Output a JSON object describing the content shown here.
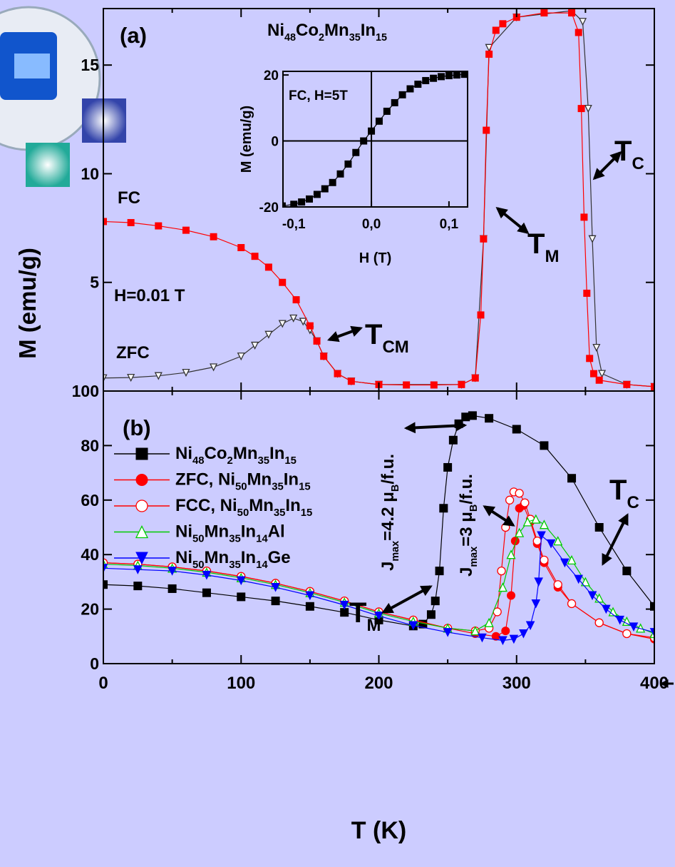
{
  "chart_data": [
    {
      "type": "line",
      "panel_label": "(a)",
      "title_parts": [
        "Ni",
        "48",
        "Co",
        "2",
        "Mn",
        "35",
        "In",
        "15"
      ],
      "ylabel": "M (emu/g)",
      "xlim": [
        0,
        400
      ],
      "ylim": [
        0,
        17.6
      ],
      "yticks": [
        5,
        10,
        15
      ],
      "annotations": {
        "fc": "FC",
        "field": "H=0.01 T",
        "zfc": "ZFC",
        "tcm": [
          "T",
          "CM"
        ],
        "tm": [
          "T",
          "M"
        ],
        "tc": [
          "T",
          "C"
        ]
      },
      "series": [
        {
          "marker": "open-triangle-down",
          "color": "#333333",
          "x": [
            0,
            20,
            40,
            60,
            80,
            100,
            110,
            120,
            130,
            138,
            145,
            150,
            155,
            160,
            170,
            180,
            200,
            260,
            270,
            276,
            280,
            300,
            340,
            348,
            352,
            355,
            358,
            362,
            380,
            400
          ],
          "values": [
            0.6,
            0.62,
            0.7,
            0.85,
            1.1,
            1.6,
            2.1,
            2.6,
            3.1,
            3.35,
            3.2,
            2.8,
            2.3,
            1.6,
            0.8,
            0.45,
            0.3,
            0.3,
            0.6,
            7,
            15.8,
            17.2,
            17.5,
            17,
            13,
            7,
            2,
            0.8,
            0.3,
            0.2
          ]
        },
        {
          "marker": "square",
          "color": "#ff0000",
          "x": [
            0,
            20,
            40,
            60,
            80,
            100,
            110,
            120,
            130,
            140,
            150,
            155,
            160,
            170,
            180,
            200,
            220,
            240,
            260,
            270,
            274,
            276,
            278,
            280,
            285,
            290,
            300,
            320,
            340,
            345,
            347,
            349,
            351,
            353,
            356,
            360,
            380,
            400
          ],
          "values": [
            7.8,
            7.75,
            7.6,
            7.4,
            7.1,
            6.6,
            6.2,
            5.7,
            5.0,
            4.2,
            3.0,
            2.3,
            1.6,
            0.8,
            0.45,
            0.3,
            0.28,
            0.28,
            0.3,
            0.6,
            3.5,
            7,
            12,
            15.5,
            16.6,
            16.9,
            17.2,
            17.4,
            17.4,
            16.5,
            13,
            8,
            4.5,
            1.5,
            0.8,
            0.5,
            0.3,
            0.2
          ]
        }
      ]
    },
    {
      "type": "line",
      "text": "FC, H=5T",
      "xlabel": "H (T)",
      "ylabel": "M (emu/g)",
      "xlim": [
        -0.114,
        0.124
      ],
      "ylim": [
        -20,
        21.1
      ],
      "xticks": [
        {
          "value": -0.1,
          "label": "-0,1"
        },
        {
          "value": 0,
          "label": "0,0"
        },
        {
          "value": 0.1,
          "label": "0,1"
        }
      ],
      "yticks": [
        -20,
        0,
        20
      ],
      "series": [
        {
          "marker": "square",
          "color": "#000000",
          "x": [
            -0.115,
            -0.1,
            -0.09,
            -0.08,
            -0.07,
            -0.06,
            -0.05,
            -0.04,
            -0.03,
            -0.02,
            -0.01,
            0,
            0.01,
            0.02,
            0.03,
            0.04,
            0.05,
            0.06,
            0.07,
            0.08,
            0.09,
            0.1,
            0.11,
            0.12
          ],
          "values": [
            -19.7,
            -19.2,
            -18.5,
            -17.6,
            -16.2,
            -14.5,
            -12.6,
            -10,
            -7,
            -3.5,
            0,
            3,
            6,
            9,
            11.6,
            14,
            15.8,
            17.2,
            18.3,
            19,
            19.5,
            19.8,
            20,
            20.2
          ]
        }
      ]
    },
    {
      "type": "line",
      "panel_label": "(b)",
      "xlabel": "T (K)",
      "xlim": [
        0,
        400
      ],
      "xticks": [
        0,
        100,
        200,
        300,
        400
      ],
      "ylim": [
        0,
        100
      ],
      "yticks": [
        0,
        20,
        40,
        60,
        80,
        100
      ],
      "legend": "upper left",
      "annotations": {
        "tc": [
          "T",
          "C"
        ],
        "tm": [
          "T",
          "M"
        ],
        "j1": [
          "J",
          "max",
          "=4.2 μ",
          "B",
          "/f.u."
        ],
        "j2": [
          "J",
          "max",
          "=3 μ",
          "B",
          "/f.u."
        ]
      },
      "series": [
        {
          "name": "Ni48Co2Mn35In15",
          "marker": "square",
          "color": "#000000",
          "x": [
            0,
            25,
            50,
            75,
            100,
            125,
            150,
            175,
            200,
            225,
            232,
            238,
            241,
            244,
            247,
            250,
            254,
            258,
            263,
            268,
            280,
            300,
            320,
            340,
            360,
            380,
            400
          ],
          "values": [
            29,
            28.5,
            27.5,
            26,
            24.5,
            23,
            21,
            18.8,
            16,
            13.8,
            14.5,
            18,
            23,
            34,
            57,
            72,
            82,
            88,
            90.5,
            91,
            90,
            86,
            80,
            68,
            50,
            34,
            21
          ]
        },
        {
          "name": "ZFC, Ni50Mn35In15",
          "marker": "circle",
          "color": "#ff0000",
          "x": [
            0,
            25,
            50,
            75,
            100,
            125,
            150,
            175,
            200,
            225,
            250,
            270,
            285,
            292,
            296,
            299,
            302,
            305,
            310,
            315,
            320,
            330,
            340,
            360,
            380,
            400
          ],
          "values": [
            37,
            36.5,
            35.5,
            34,
            32,
            29.5,
            26.5,
            23,
            19,
            16,
            13,
            11,
            10,
            12,
            25,
            45,
            57,
            58,
            52,
            44,
            37,
            28,
            22,
            15,
            11,
            9
          ]
        },
        {
          "name": "FCC, Ni50Mn35In15",
          "marker": "open-circle",
          "color": "#ff0000",
          "x": [
            0,
            25,
            50,
            75,
            100,
            125,
            150,
            175,
            200,
            225,
            250,
            270,
            280,
            286,
            289,
            292,
            295,
            298,
            302,
            306,
            310,
            315,
            320,
            330,
            340,
            360,
            380,
            400
          ],
          "values": [
            37,
            36.5,
            35.5,
            34,
            32,
            29.5,
            26.5,
            23,
            19,
            16,
            13,
            12,
            13,
            19,
            34,
            50,
            60,
            63,
            62.5,
            59,
            53,
            45,
            38,
            29,
            22,
            15,
            11,
            9.5
          ]
        },
        {
          "name": "Ni50Mn35In14Al",
          "marker": "open-triangle",
          "color": "#00cc00",
          "x": [
            0,
            25,
            50,
            75,
            100,
            125,
            150,
            175,
            200,
            225,
            250,
            270,
            280,
            290,
            296,
            302,
            308,
            314,
            320,
            330,
            340,
            350,
            360,
            370,
            380,
            390,
            400
          ],
          "values": [
            36.5,
            36,
            35,
            33.5,
            31.5,
            29,
            26,
            22.5,
            18.5,
            15.5,
            13,
            12,
            15,
            28,
            40,
            48,
            52,
            53,
            51,
            45,
            38,
            30,
            24,
            19,
            15.5,
            13,
            11
          ]
        },
        {
          "name": "Ni50Mn35In14Ge",
          "marker": "triangle-down",
          "color": "#0000ff",
          "x": [
            0,
            25,
            50,
            75,
            100,
            125,
            150,
            175,
            200,
            225,
            250,
            275,
            290,
            298,
            305,
            310,
            314,
            316,
            318,
            325,
            335,
            345,
            355,
            365,
            375,
            385,
            400
          ],
          "values": [
            35,
            34.5,
            34,
            32.5,
            30.5,
            28,
            25,
            21.5,
            17.5,
            14,
            11.5,
            9.5,
            8.5,
            9,
            11,
            14,
            22,
            30,
            47,
            44,
            37,
            31,
            25,
            20,
            16,
            13.5,
            11.5
          ]
        }
      ]
    }
  ]
}
